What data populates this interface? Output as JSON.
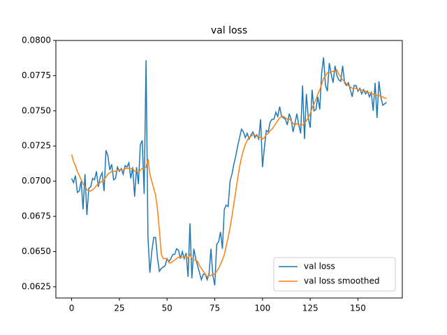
{
  "chart_data": {
    "type": "line",
    "title": "val loss",
    "x": [
      0,
      1,
      2,
      3,
      4,
      5,
      6,
      7,
      8,
      9,
      10,
      11,
      12,
      13,
      14,
      15,
      16,
      17,
      18,
      19,
      20,
      21,
      22,
      23,
      24,
      25,
      26,
      27,
      28,
      29,
      30,
      31,
      32,
      33,
      34,
      35,
      36,
      37,
      38,
      39,
      40,
      41,
      42,
      43,
      44,
      45,
      46,
      47,
      48,
      49,
      50,
      51,
      52,
      53,
      54,
      55,
      56,
      57,
      58,
      59,
      60,
      61,
      62,
      63,
      64,
      65,
      66,
      67,
      68,
      69,
      70,
      71,
      72,
      73,
      74,
      75,
      76,
      77,
      78,
      79,
      80,
      81,
      82,
      83,
      84,
      85,
      86,
      87,
      88,
      89,
      90,
      91,
      92,
      93,
      94,
      95,
      96,
      97,
      98,
      99,
      100,
      101,
      102,
      103,
      104,
      105,
      106,
      107,
      108,
      109,
      110,
      111,
      112,
      113,
      114,
      115,
      116,
      117,
      118,
      119,
      120,
      121,
      122,
      123,
      124,
      125,
      126,
      127,
      128,
      129,
      130,
      131,
      132,
      133,
      134,
      135,
      136,
      137,
      138,
      139,
      140,
      141,
      142,
      143,
      144,
      145,
      146,
      147,
      148,
      149,
      150,
      151,
      152,
      153,
      154,
      155,
      156,
      157,
      158,
      159,
      160,
      161,
      162,
      163,
      164,
      165
    ],
    "series": [
      {
        "name": "val loss",
        "color": "#1f77b4",
        "values": [
          0.0702,
          0.0699,
          0.0704,
          0.0692,
          0.0693,
          0.07,
          0.068,
          0.0705,
          0.0676,
          0.0695,
          0.0696,
          0.0702,
          0.0701,
          0.0707,
          0.0696,
          0.0703,
          0.0706,
          0.0693,
          0.0722,
          0.0718,
          0.0708,
          0.0712,
          0.0701,
          0.0702,
          0.071,
          0.0707,
          0.0709,
          0.0705,
          0.0711,
          0.071,
          0.0713,
          0.0702,
          0.071,
          0.0689,
          0.071,
          0.0698,
          0.0726,
          0.0729,
          0.0691,
          0.0786,
          0.066,
          0.0635,
          0.065,
          0.066,
          0.066,
          0.0645,
          0.0636,
          0.0638,
          0.0639,
          0.064,
          0.0645,
          0.0643,
          0.0645,
          0.0648,
          0.0648,
          0.0652,
          0.0651,
          0.0645,
          0.065,
          0.0645,
          0.0649,
          0.0632,
          0.067,
          0.0631,
          0.0652,
          0.0645,
          0.064,
          0.0635,
          0.063,
          0.0634,
          0.0634,
          0.063,
          0.0634,
          0.0652,
          0.0633,
          0.0626,
          0.0655,
          0.0657,
          0.0664,
          0.0652,
          0.068,
          0.0683,
          0.0682,
          0.07,
          0.0705,
          0.0712,
          0.0718,
          0.0725,
          0.0731,
          0.0737,
          0.0735,
          0.0731,
          0.0734,
          0.073,
          0.0733,
          0.0735,
          0.0731,
          0.0733,
          0.073,
          0.0744,
          0.071,
          0.0724,
          0.0736,
          0.0735,
          0.0742,
          0.0744,
          0.0744,
          0.0749,
          0.0746,
          0.0753,
          0.0746,
          0.0745,
          0.0744,
          0.074,
          0.0748,
          0.0744,
          0.0735,
          0.0741,
          0.0748,
          0.074,
          0.0734,
          0.0768,
          0.073,
          0.0762,
          0.0745,
          0.0738,
          0.0765,
          0.075,
          0.0751,
          0.076,
          0.0751,
          0.0777,
          0.0788,
          0.0768,
          0.0764,
          0.0784,
          0.0776,
          0.077,
          0.0782,
          0.0775,
          0.0772,
          0.0771,
          0.0782,
          0.077,
          0.0768,
          0.077,
          0.0765,
          0.076,
          0.0768,
          0.0768,
          0.0764,
          0.0766,
          0.0762,
          0.0765,
          0.0762,
          0.0764,
          0.076,
          0.0763,
          0.075,
          0.077,
          0.0745,
          0.0771,
          0.076,
          0.0754,
          0.0755,
          0.0756
        ]
      },
      {
        "name": "val loss smoothed",
        "color": "#ff7f0e",
        "values": [
          0.0719,
          0.0714,
          0.0711,
          0.0707,
          0.0704,
          0.0701,
          0.0698,
          0.0696,
          0.0694,
          0.0693,
          0.0693,
          0.0694,
          0.0695,
          0.0697,
          0.0698,
          0.0699,
          0.07,
          0.0701,
          0.0703,
          0.0705,
          0.0706,
          0.0707,
          0.0707,
          0.0707,
          0.0708,
          0.0708,
          0.0708,
          0.0708,
          0.0709,
          0.0709,
          0.0709,
          0.0709,
          0.0709,
          0.0707,
          0.0707,
          0.0706,
          0.0708,
          0.0709,
          0.0709,
          0.071,
          0.0716,
          0.0705,
          0.07,
          0.0695,
          0.069,
          0.068,
          0.0665,
          0.0648,
          0.0645,
          0.0645,
          0.0645,
          0.0642,
          0.0642,
          0.0643,
          0.0644,
          0.0645,
          0.0646,
          0.0646,
          0.0646,
          0.0646,
          0.0647,
          0.0645,
          0.0648,
          0.0645,
          0.0644,
          0.0644,
          0.0643,
          0.064,
          0.0638,
          0.0636,
          0.0634,
          0.0632,
          0.0633,
          0.0633,
          0.0634,
          0.0634,
          0.0636,
          0.0638,
          0.0641,
          0.0644,
          0.0648,
          0.0654,
          0.066,
          0.0667,
          0.0675,
          0.0684,
          0.0693,
          0.0702,
          0.071,
          0.0717,
          0.0722,
          0.0726,
          0.0729,
          0.0731,
          0.0732,
          0.0733,
          0.0733,
          0.0732,
          0.0731,
          0.0731,
          0.073,
          0.0731,
          0.0733,
          0.0734,
          0.0736,
          0.0737,
          0.0739,
          0.0741,
          0.0743,
          0.0745,
          0.0746,
          0.0746,
          0.0745,
          0.0744,
          0.0744,
          0.0743,
          0.0741,
          0.074,
          0.0741,
          0.074,
          0.074,
          0.074,
          0.0741,
          0.0743,
          0.0745,
          0.0748,
          0.0752,
          0.0755,
          0.0758,
          0.0762,
          0.0765,
          0.0769,
          0.0773,
          0.0775,
          0.0777,
          0.0777,
          0.0778,
          0.0778,
          0.0778,
          0.0779,
          0.0776,
          0.0774,
          0.0772,
          0.0771,
          0.0769,
          0.0768,
          0.0767,
          0.0766,
          0.0766,
          0.0766,
          0.0765,
          0.0765,
          0.0765,
          0.0764,
          0.0764,
          0.0763,
          0.0763,
          0.0762,
          0.0762,
          0.0762,
          0.0761,
          0.0761,
          0.076,
          0.076,
          0.0759,
          0.0759
        ]
      }
    ],
    "xlim": [
      -8.25,
      173.25
    ],
    "xticks": [
      0,
      25,
      50,
      75,
      100,
      125,
      150
    ],
    "ylim": [
      0.0617,
      0.08
    ],
    "yticks": [
      0.0625,
      {
        "value": 0.065,
        "label": "0.0650"
      },
      0.0675,
      {
        "value": 0.07,
        "label": "0.0700"
      },
      0.0725,
      {
        "value": 0.075,
        "label": "0.0750"
      },
      0.0775,
      {
        "value": 0.08,
        "label": "0.0800"
      }
    ],
    "legend": "lower right"
  }
}
